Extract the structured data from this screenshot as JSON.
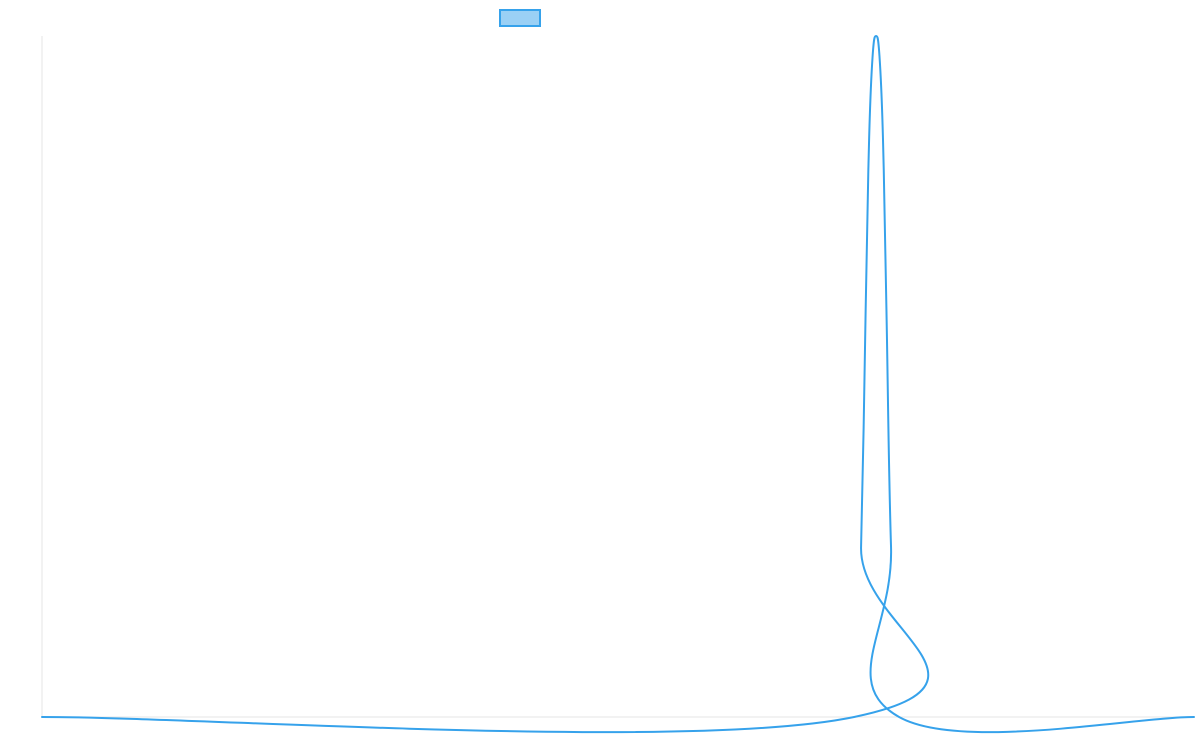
{
  "chart_data": {
    "type": "line",
    "title": "",
    "xlabel": "",
    "ylabel": "",
    "grid": false,
    "legend_position": "top",
    "xlim": [
      0,
      1000
    ],
    "ylim": [
      0,
      1
    ],
    "series": [
      {
        "name": "",
        "color": "#36a2eb",
        "fill_color": "#9ad0f5",
        "points": [
          [
            0,
            0
          ],
          [
            705,
            0
          ],
          [
            711,
            0.25
          ],
          [
            715,
            0.6
          ],
          [
            718,
            0.85
          ],
          [
            721,
            0.97
          ],
          [
            724,
            1.0
          ],
          [
            727,
            0.97
          ],
          [
            730,
            0.85
          ],
          [
            733,
            0.6
          ],
          [
            737,
            0.25
          ],
          [
            744,
            0
          ],
          [
            1000,
            0
          ]
        ]
      }
    ]
  }
}
